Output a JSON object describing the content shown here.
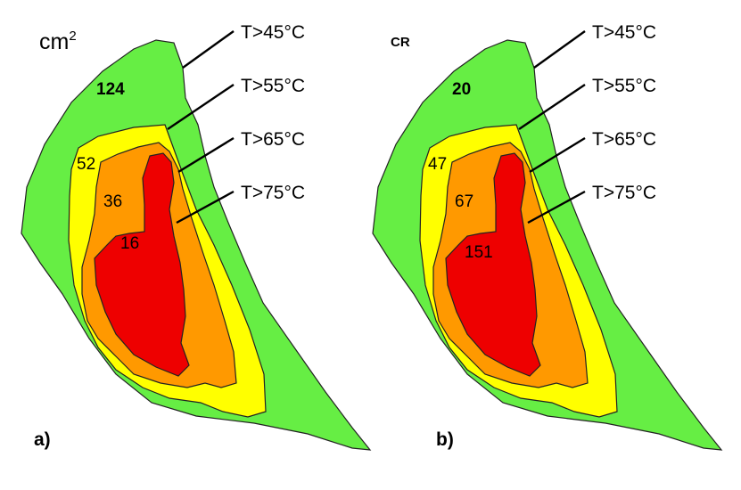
{
  "colors": {
    "t45": "#66ee44",
    "t55": "#ffff00",
    "t65": "#ff9900",
    "t75": "#ee0000"
  },
  "panels": [
    {
      "label": "a)",
      "unit": "cm",
      "unit_sup": "2",
      "legend": [
        "T>45°C",
        "T>55°C",
        "T>65°C",
        "T>75°C"
      ],
      "values": {
        "t45": "124",
        "t55": "52",
        "t65": "36",
        "t75": "16"
      }
    },
    {
      "label": "b)",
      "unit": "CR",
      "unit_sup": "",
      "legend": [
        "T>45°C",
        "T>55°C",
        "T>65°C",
        "T>75°C"
      ],
      "values": {
        "t45": "20",
        "t55": "47",
        "t65": "67",
        "t75": "151"
      }
    }
  ]
}
